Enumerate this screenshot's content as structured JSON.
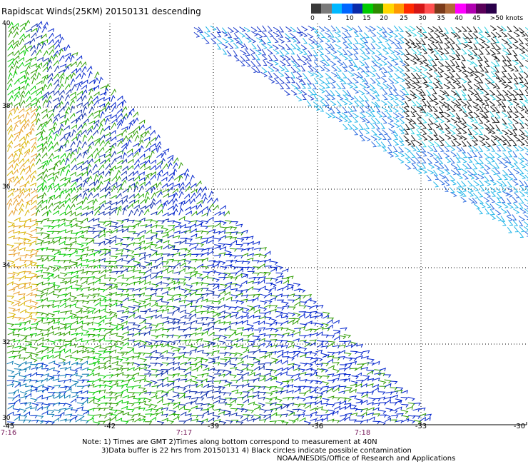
{
  "title": "Rapidscat Winds(25KM) 20150131 descending",
  "legend": {
    "labels": [
      "0",
      "5",
      "10",
      "15",
      "20",
      "25",
      "30",
      "35",
      "40",
      "45",
      ">50 knots"
    ],
    "colors": [
      "#3a3a3a",
      "#7a7a7a",
      "#00b8ff",
      "#0066ff",
      "#0a2aa8",
      "#00cc00",
      "#2e8b00",
      "#ffd700",
      "#ff9900",
      "#ff2a00",
      "#d41616",
      "#ff5050",
      "#7a3a1a",
      "#b06a3a",
      "#ff00ff",
      "#b000b0",
      "#5a005a",
      "#2a004a"
    ]
  },
  "axes": {
    "lon_labels": [
      "-45",
      "-42",
      "-39",
      "-36",
      "-33",
      "-30"
    ],
    "lat_labels": [
      "40",
      "38",
      "36",
      "34",
      "32",
      "30"
    ]
  },
  "time_labels": [
    "7:16",
    "7:17",
    "7:18"
  ],
  "notes": {
    "line1": "Note: 1) Times are GMT 2)Times along bottom correspond to measurement at 40N",
    "line2": "3)Data buffer is 22 hrs from 20150131 4) Black circles indicate possible contamination",
    "line3": "NOAA/NESDIS/Office of Research and Applications"
  }
}
